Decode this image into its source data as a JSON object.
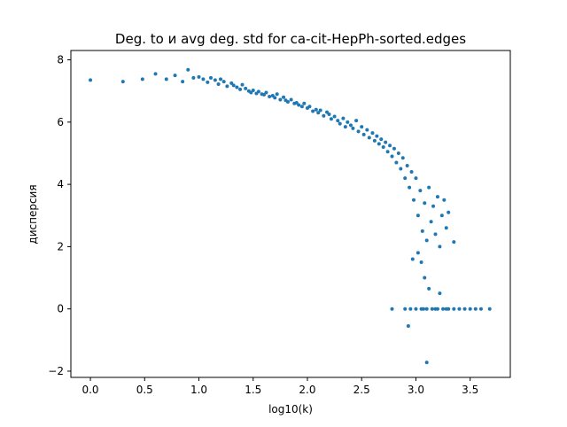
{
  "chart_data": {
    "type": "scatter",
    "title": "Deg. to и avg deg. std for ca-cit-HepPh-sorted.edges",
    "xlabel": "log10(k)",
    "ylabel": "дисперсия",
    "xlim": [
      -0.18,
      3.87
    ],
    "ylim": [
      -2.2,
      8.3
    ],
    "xticks": [
      0.0,
      0.5,
      1.0,
      1.5,
      2.0,
      2.5,
      3.0,
      3.5
    ],
    "xtick_labels": [
      "0.0",
      "0.5",
      "1.0",
      "1.5",
      "2.0",
      "2.5",
      "3.0",
      "3.5"
    ],
    "yticks": [
      -2,
      0,
      2,
      4,
      6,
      8
    ],
    "ytick_labels": [
      "−2",
      "0",
      "2",
      "4",
      "6",
      "8"
    ],
    "grid": false,
    "marker_color": "#1f77b4",
    "series": [
      {
        "points": [
          [
            0.0,
            7.35
          ],
          [
            0.3,
            7.3
          ],
          [
            0.48,
            7.38
          ],
          [
            0.6,
            7.55
          ],
          [
            0.7,
            7.38
          ],
          [
            0.78,
            7.5
          ],
          [
            0.85,
            7.3
          ],
          [
            0.9,
            7.68
          ],
          [
            0.95,
            7.42
          ],
          [
            1.0,
            7.45
          ],
          [
            1.04,
            7.38
          ],
          [
            1.08,
            7.28
          ],
          [
            1.11,
            7.42
          ],
          [
            1.15,
            7.35
          ],
          [
            1.18,
            7.22
          ],
          [
            1.2,
            7.38
          ],
          [
            1.23,
            7.3
          ],
          [
            1.26,
            7.15
          ],
          [
            1.3,
            7.25
          ],
          [
            1.32,
            7.18
          ],
          [
            1.35,
            7.12
          ],
          [
            1.38,
            7.05
          ],
          [
            1.4,
            7.2
          ],
          [
            1.43,
            7.08
          ],
          [
            1.46,
            7.0
          ],
          [
            1.48,
            6.95
          ],
          [
            1.5,
            7.02
          ],
          [
            1.53,
            6.92
          ],
          [
            1.55,
            6.98
          ],
          [
            1.58,
            6.9
          ],
          [
            1.6,
            6.88
          ],
          [
            1.62,
            6.95
          ],
          [
            1.65,
            6.82
          ],
          [
            1.68,
            6.85
          ],
          [
            1.7,
            6.78
          ],
          [
            1.72,
            6.9
          ],
          [
            1.75,
            6.72
          ],
          [
            1.78,
            6.8
          ],
          [
            1.8,
            6.7
          ],
          [
            1.82,
            6.65
          ],
          [
            1.85,
            6.72
          ],
          [
            1.88,
            6.6
          ],
          [
            1.9,
            6.62
          ],
          [
            1.92,
            6.55
          ],
          [
            1.95,
            6.5
          ],
          [
            1.97,
            6.6
          ],
          [
            2.0,
            6.45
          ],
          [
            2.02,
            6.5
          ],
          [
            2.05,
            6.35
          ],
          [
            2.08,
            6.4
          ],
          [
            2.1,
            6.3
          ],
          [
            2.12,
            6.38
          ],
          [
            2.15,
            6.2
          ],
          [
            2.18,
            6.32
          ],
          [
            2.2,
            6.25
          ],
          [
            2.22,
            6.1
          ],
          [
            2.25,
            6.18
          ],
          [
            2.28,
            6.05
          ],
          [
            2.3,
            5.95
          ],
          [
            2.33,
            6.12
          ],
          [
            2.35,
            5.85
          ],
          [
            2.37,
            6.0
          ],
          [
            2.4,
            5.9
          ],
          [
            2.42,
            5.8
          ],
          [
            2.45,
            6.05
          ],
          [
            2.47,
            5.7
          ],
          [
            2.5,
            5.85
          ],
          [
            2.52,
            5.6
          ],
          [
            2.55,
            5.75
          ],
          [
            2.57,
            5.5
          ],
          [
            2.6,
            5.65
          ],
          [
            2.62,
            5.4
          ],
          [
            2.64,
            5.55
          ],
          [
            2.66,
            5.3
          ],
          [
            2.68,
            5.45
          ],
          [
            2.7,
            5.2
          ],
          [
            2.72,
            5.35
          ],
          [
            2.74,
            5.05
          ],
          [
            2.76,
            5.25
          ],
          [
            2.78,
            4.9
          ],
          [
            2.8,
            5.15
          ],
          [
            2.82,
            4.7
          ],
          [
            2.84,
            5.0
          ],
          [
            2.86,
            4.5
          ],
          [
            2.88,
            4.85
          ],
          [
            2.9,
            4.2
          ],
          [
            2.92,
            4.6
          ],
          [
            2.94,
            3.9
          ],
          [
            2.96,
            4.4
          ],
          [
            2.98,
            3.5
          ],
          [
            3.0,
            4.2
          ],
          [
            3.02,
            3.0
          ],
          [
            3.04,
            3.8
          ],
          [
            3.06,
            2.5
          ],
          [
            3.08,
            3.4
          ],
          [
            3.1,
            2.2
          ],
          [
            3.12,
            3.9
          ],
          [
            3.14,
            2.8
          ],
          [
            3.16,
            3.3
          ],
          [
            3.18,
            2.4
          ],
          [
            3.2,
            3.6
          ],
          [
            3.22,
            2.0
          ],
          [
            3.24,
            3.0
          ],
          [
            3.26,
            3.5
          ],
          [
            3.28,
            2.6
          ],
          [
            3.3,
            3.1
          ],
          [
            3.35,
            2.15
          ],
          [
            3.05,
            1.5
          ],
          [
            3.08,
            1.0
          ],
          [
            3.12,
            0.65
          ],
          [
            3.22,
            0.5
          ],
          [
            2.93,
            -0.55
          ],
          [
            3.1,
            -1.72
          ],
          [
            2.97,
            1.6
          ],
          [
            3.02,
            1.8
          ],
          [
            2.78,
            0.0
          ],
          [
            2.9,
            0.0
          ],
          [
            3.0,
            0.0
          ],
          [
            3.05,
            0.0
          ],
          [
            3.1,
            0.0
          ],
          [
            3.15,
            0.0
          ],
          [
            3.2,
            0.0
          ],
          [
            3.25,
            0.0
          ],
          [
            3.3,
            0.0
          ],
          [
            3.35,
            0.0
          ],
          [
            3.4,
            0.0
          ],
          [
            3.45,
            0.0
          ],
          [
            3.5,
            0.0
          ],
          [
            3.55,
            0.0
          ],
          [
            3.6,
            0.0
          ],
          [
            3.68,
            0.0
          ],
          [
            2.95,
            0.0
          ],
          [
            3.07,
            0.0
          ],
          [
            3.18,
            0.0
          ],
          [
            3.28,
            0.0
          ]
        ]
      }
    ]
  }
}
